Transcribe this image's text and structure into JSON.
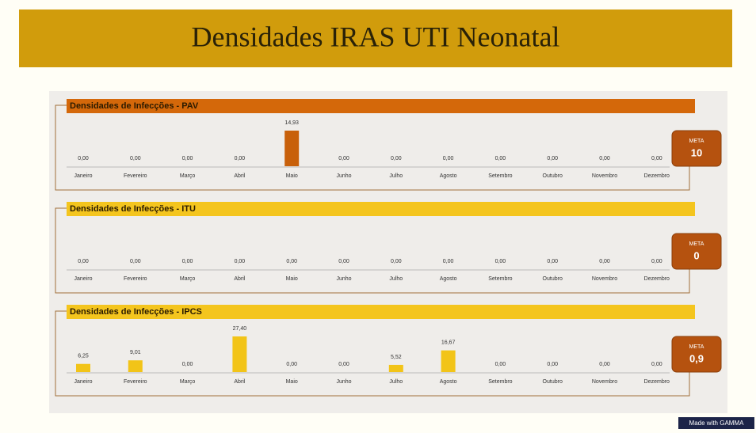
{
  "title": "Densidades IRAS UTI Neonatal",
  "footer": "Made with GAMMA",
  "chart_data": [
    {
      "type": "bar",
      "title": "Densidades de Infecções - PAV",
      "color": "#c8600a",
      "header_color": "#d4680a",
      "categories": [
        "Janeiro",
        "Fevereiro",
        "Março",
        "Abril",
        "Maio",
        "Junho",
        "Julho",
        "Agosto",
        "Setembro",
        "Outubro",
        "Novembro",
        "Dezembro"
      ],
      "values": [
        0,
        0,
        0,
        0,
        14.93,
        0,
        0,
        0,
        0,
        0,
        0,
        0
      ],
      "value_labels": [
        "0,00",
        "0,00",
        "0,00",
        "0,00",
        "14,93",
        "0,00",
        "0,00",
        "0,00",
        "0,00",
        "0,00",
        "0,00",
        "0,00"
      ],
      "meta": {
        "label": "META",
        "value": "10"
      }
    },
    {
      "type": "bar",
      "title": "Densidades de Infecções - ITU",
      "color": "#f2c418",
      "header_color": "#f4c51e",
      "categories": [
        "Janeiro",
        "Fevereiro",
        "Março",
        "Abril",
        "Maio",
        "Junho",
        "Julho",
        "Agosto",
        "Setembro",
        "Outubro",
        "Novembro",
        "Dezembro"
      ],
      "values": [
        0,
        0,
        0,
        0,
        0,
        0,
        0,
        0,
        0,
        0,
        0,
        0
      ],
      "value_labels": [
        "0,00",
        "0,00",
        "0,00",
        "0,00",
        "0,00",
        "0,00",
        "0,00",
        "0,00",
        "0,00",
        "0,00",
        "0,00",
        "0,00"
      ],
      "meta": {
        "label": "META",
        "value": "0"
      }
    },
    {
      "type": "bar",
      "title": "Densidades de Infecções - IPCS",
      "color": "#f2c418",
      "header_color": "#f4c51e",
      "categories": [
        "Janeiro",
        "Fevereiro",
        "Março",
        "Abril",
        "Maio",
        "Junho",
        "Julho",
        "Agosto",
        "Setembro",
        "Outubro",
        "Novembro",
        "Dezembro"
      ],
      "values": [
        6.25,
        9.01,
        0,
        27.4,
        0,
        0,
        5.52,
        16.67,
        0,
        0,
        0,
        0
      ],
      "value_labels": [
        "6,25",
        "9,01",
        "0,00",
        "27,40",
        "0,00",
        "0,00",
        "5,52",
        "16,67",
        "0,00",
        "0,00",
        "0,00",
        "0,00"
      ],
      "meta": {
        "label": "META",
        "value": "0,9"
      }
    }
  ]
}
